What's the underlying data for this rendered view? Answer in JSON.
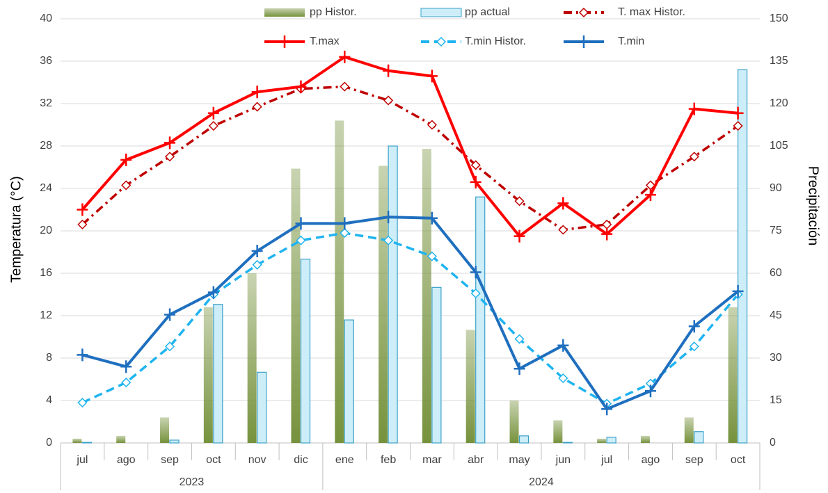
{
  "chart_data": {
    "type": "bar-line",
    "y_label": "Temperatura (°C)",
    "y2_label": "Precipitación",
    "categories": [
      "jul",
      "ago",
      "sep",
      "oct",
      "nov",
      "dic",
      "ene",
      "feb",
      "mar",
      "abr",
      "may",
      "jun",
      "jul",
      "ago",
      "sep",
      "oct"
    ],
    "years": [
      "2023",
      "2023",
      "2023",
      "2023",
      "2023",
      "2023",
      "2024",
      "2024",
      "2024",
      "2024",
      "2024",
      "2024",
      "2024",
      "2024",
      "2024",
      "2024"
    ],
    "ylim": [
      0,
      40
    ],
    "yticks": [
      0,
      4,
      8,
      12,
      16,
      20,
      24,
      28,
      32,
      36,
      40
    ],
    "y2lim": [
      0,
      150
    ],
    "y2ticks": [
      0,
      15,
      30,
      45,
      60,
      75,
      90,
      105,
      120,
      135,
      150
    ],
    "grid": true,
    "legend": "top",
    "series": [
      {
        "name": "pp Histor.",
        "type": "bar",
        "axis": "y2",
        "color": "#76923c",
        "values": [
          1.5,
          2.5,
          9,
          48,
          60,
          97,
          114,
          98,
          104,
          40,
          15,
          8,
          1.5,
          2.5,
          9,
          48
        ]
      },
      {
        "name": "pp actual",
        "type": "bar",
        "axis": "y2",
        "color": "#cdeef9",
        "edge": "#3aa0c8",
        "values": [
          0.2,
          0,
          1,
          49,
          25,
          65,
          43.5,
          105,
          55,
          87,
          2.5,
          0.2,
          2,
          0,
          4,
          132
        ]
      },
      {
        "name": "T. max Histor.",
        "type": "line",
        "color": "#c00000",
        "style": "dash-dot",
        "marker": "diamond",
        "values": [
          20.6,
          24.3,
          27,
          29.9,
          31.7,
          33.4,
          33.6,
          32.3,
          30,
          26.2,
          22.8,
          20.1,
          20.6,
          24.3,
          27,
          29.9
        ]
      },
      {
        "name": "T.max",
        "type": "line",
        "color": "#ff0000",
        "style": "solid",
        "marker": "plus",
        "values": [
          22,
          26.7,
          28.3,
          31.1,
          33.1,
          33.6,
          36.4,
          35.1,
          34.6,
          24.6,
          19.5,
          22.6,
          19.7,
          23.4,
          31.5,
          31.1
        ]
      },
      {
        "name": "T.min Histor.",
        "type": "line",
        "color": "#1fb4f0",
        "style": "dashed",
        "marker": "diamond",
        "values": [
          3.8,
          5.7,
          9.1,
          14,
          16.8,
          19.1,
          19.8,
          19.1,
          17.6,
          14.1,
          9.8,
          6.1,
          3.7,
          5.6,
          9.1,
          14
        ]
      },
      {
        "name": "T.min",
        "type": "line",
        "color": "#1f6fbf",
        "style": "solid",
        "marker": "plus",
        "values": [
          8.3,
          7.2,
          12.1,
          14.2,
          18.1,
          20.7,
          20.7,
          21.3,
          21.2,
          16.1,
          7,
          9.2,
          3.2,
          4.9,
          11,
          14.3
        ]
      }
    ]
  }
}
